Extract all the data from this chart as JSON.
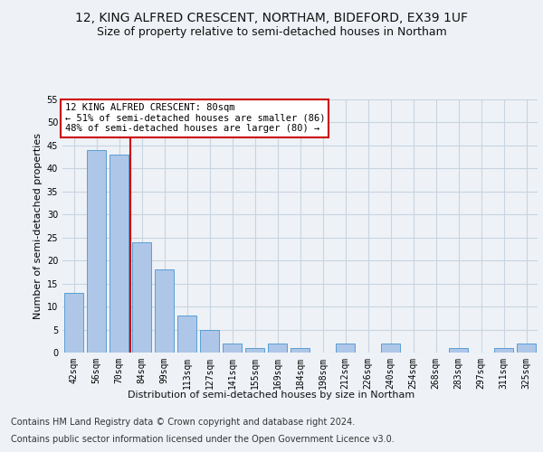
{
  "title1": "12, KING ALFRED CRESCENT, NORTHAM, BIDEFORD, EX39 1UF",
  "title2": "Size of property relative to semi-detached houses in Northam",
  "xlabel": "Distribution of semi-detached houses by size in Northam",
  "ylabel": "Number of semi-detached properties",
  "categories": [
    "42sqm",
    "56sqm",
    "70sqm",
    "84sqm",
    "99sqm",
    "113sqm",
    "127sqm",
    "141sqm",
    "155sqm",
    "169sqm",
    "184sqm",
    "198sqm",
    "212sqm",
    "226sqm",
    "240sqm",
    "254sqm",
    "268sqm",
    "283sqm",
    "297sqm",
    "311sqm",
    "325sqm"
  ],
  "values": [
    13,
    44,
    43,
    24,
    18,
    8,
    5,
    2,
    1,
    2,
    1,
    0,
    2,
    0,
    2,
    0,
    0,
    1,
    0,
    1,
    2
  ],
  "bar_color": "#aec6e8",
  "bar_edge_color": "#5a9fd4",
  "vline_color": "#cc0000",
  "vline_pos": 2.5,
  "annotation_title": "12 KING ALFRED CRESCENT: 80sqm",
  "annotation_line1": "← 51% of semi-detached houses are smaller (86)",
  "annotation_line2": "48% of semi-detached houses are larger (80) →",
  "annotation_box_color": "#ffffff",
  "annotation_box_edge_color": "#cc0000",
  "ylim": [
    0,
    55
  ],
  "yticks": [
    0,
    5,
    10,
    15,
    20,
    25,
    30,
    35,
    40,
    45,
    50,
    55
  ],
  "footer1": "Contains HM Land Registry data © Crown copyright and database right 2024.",
  "footer2": "Contains public sector information licensed under the Open Government Licence v3.0.",
  "bg_color": "#eef2f7",
  "plot_bg_color": "#eef2f7",
  "grid_color": "#c8d4e0",
  "title1_fontsize": 10,
  "title2_fontsize": 9,
  "xlabel_fontsize": 8,
  "ylabel_fontsize": 8,
  "tick_fontsize": 7,
  "footer_fontsize": 7,
  "ann_fontsize": 7.5
}
